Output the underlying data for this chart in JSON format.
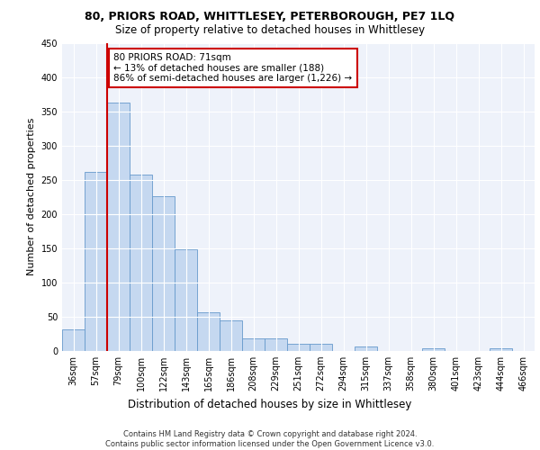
{
  "title1": "80, PRIORS ROAD, WHITTLESEY, PETERBOROUGH, PE7 1LQ",
  "title2": "Size of property relative to detached houses in Whittlesey",
  "xlabel": "Distribution of detached houses by size in Whittlesey",
  "ylabel": "Number of detached properties",
  "categories": [
    "36sqm",
    "57sqm",
    "79sqm",
    "100sqm",
    "122sqm",
    "143sqm",
    "165sqm",
    "186sqm",
    "208sqm",
    "229sqm",
    "251sqm",
    "272sqm",
    "294sqm",
    "315sqm",
    "337sqm",
    "358sqm",
    "380sqm",
    "401sqm",
    "423sqm",
    "444sqm",
    "466sqm"
  ],
  "values": [
    31,
    261,
    362,
    257,
    226,
    148,
    57,
    45,
    18,
    18,
    11,
    10,
    0,
    6,
    0,
    0,
    4,
    0,
    0,
    4,
    0
  ],
  "bar_color": "#c5d8f0",
  "bar_edge_color": "#6699cc",
  "vline_x_idx": 2,
  "vline_color": "#cc0000",
  "annotation_text": "80 PRIORS ROAD: 71sqm\n← 13% of detached houses are smaller (188)\n86% of semi-detached houses are larger (1,226) →",
  "annotation_box_color": "#cc0000",
  "ylim": [
    0,
    450
  ],
  "yticks": [
    0,
    50,
    100,
    150,
    200,
    250,
    300,
    350,
    400,
    450
  ],
  "background_color": "#eef2fa",
  "footer_text": "Contains HM Land Registry data © Crown copyright and database right 2024.\nContains public sector information licensed under the Open Government Licence v3.0.",
  "title1_fontsize": 9,
  "title2_fontsize": 8.5,
  "xlabel_fontsize": 8.5,
  "ylabel_fontsize": 8,
  "tick_fontsize": 7,
  "annotation_fontsize": 7.5
}
